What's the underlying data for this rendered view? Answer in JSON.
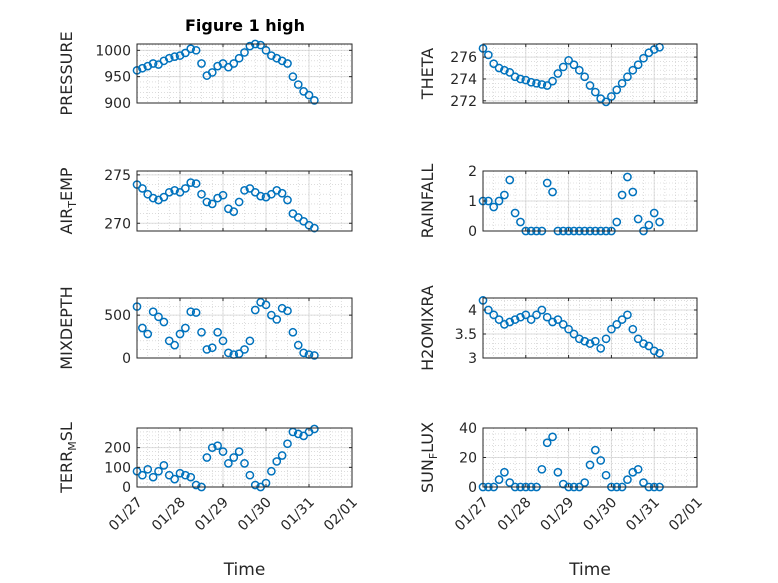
{
  "figure": {
    "title": "Figure 1 high",
    "marker_color": "#0072bd",
    "grid": "dotted"
  },
  "chart_data": [
    {
      "type": "scatter",
      "ylabel": "PRESSURE",
      "ylim": [
        900,
        1012
      ],
      "yticks": [
        900,
        950,
        1000
      ],
      "xlim": [
        "01/27",
        "02/01"
      ],
      "xticks": [
        "01/27",
        "01/28",
        "01/29",
        "01/30",
        "01/31",
        "02/01"
      ],
      "series": [
        {
          "x": [
            "01/27 00:00",
            "01/27 03:00",
            "01/27 06:00",
            "01/27 09:00",
            "01/27 12:00",
            "01/27 15:00",
            "01/27 18:00",
            "01/27 21:00",
            "01/28 00:00",
            "01/28 03:00",
            "01/28 06:00",
            "01/28 09:00",
            "01/28 12:00",
            "01/28 15:00",
            "01/28 18:00",
            "01/28 21:00",
            "01/29 00:00",
            "01/29 03:00",
            "01/29 06:00",
            "01/29 09:00",
            "01/29 12:00",
            "01/29 15:00",
            "01/29 18:00",
            "01/29 21:00",
            "01/30 00:00",
            "01/30 03:00",
            "01/30 06:00",
            "01/30 09:00",
            "01/30 12:00",
            "01/30 15:00",
            "01/30 18:00",
            "01/30 21:00",
            "01/31 00:00",
            "01/31 03:00"
          ],
          "y": [
            962,
            966,
            970,
            975,
            973,
            980,
            985,
            988,
            990,
            995,
            1003,
            1000,
            975,
            952,
            958,
            970,
            975,
            968,
            975,
            985,
            996,
            1008,
            1012,
            1010,
            1000,
            990,
            985,
            980,
            975,
            950,
            935,
            922,
            915,
            905
          ]
        }
      ]
    },
    {
      "type": "scatter",
      "ylabel": "THETA",
      "ylim": [
        271.8,
        277.2
      ],
      "yticks": [
        272,
        274,
        276
      ],
      "xlim": [
        "01/27",
        "02/01"
      ],
      "xticks": [
        "01/27",
        "01/28",
        "01/29",
        "01/30",
        "01/31",
        "02/01"
      ],
      "series": [
        {
          "x": [
            "01/27 00:00",
            "01/27 03:00",
            "01/27 06:00",
            "01/27 09:00",
            "01/27 12:00",
            "01/27 15:00",
            "01/27 18:00",
            "01/27 21:00",
            "01/28 00:00",
            "01/28 03:00",
            "01/28 06:00",
            "01/28 09:00",
            "01/28 12:00",
            "01/28 15:00",
            "01/28 18:00",
            "01/28 21:00",
            "01/29 00:00",
            "01/29 03:00",
            "01/29 06:00",
            "01/29 09:00",
            "01/29 12:00",
            "01/29 15:00",
            "01/29 18:00",
            "01/29 21:00",
            "01/30 00:00",
            "01/30 03:00",
            "01/30 06:00",
            "01/30 09:00",
            "01/30 12:00",
            "01/30 15:00",
            "01/30 18:00",
            "01/30 21:00",
            "01/31 00:00",
            "01/31 03:00"
          ],
          "y": [
            276.8,
            276.2,
            275.4,
            275.0,
            274.8,
            274.6,
            274.2,
            274.0,
            273.9,
            273.7,
            273.6,
            273.5,
            273.4,
            273.8,
            274.5,
            275.1,
            275.7,
            275.3,
            274.8,
            274.2,
            273.4,
            272.8,
            272.2,
            271.9,
            272.4,
            273.0,
            273.6,
            274.2,
            274.8,
            275.3,
            275.9,
            276.4,
            276.7,
            276.9
          ]
        }
      ]
    },
    {
      "type": "scatter",
      "ylabel": "AIR_TEMP",
      "ylim": [
        269.2,
        275.4
      ],
      "yticks": [
        270,
        275
      ],
      "xlim": [
        "01/27",
        "02/01"
      ],
      "xticks": [
        "01/27",
        "01/28",
        "01/29",
        "01/30",
        "01/31",
        "02/01"
      ],
      "series": [
        {
          "x": [
            "01/27 00:00",
            "01/27 03:00",
            "01/27 06:00",
            "01/27 09:00",
            "01/27 12:00",
            "01/27 15:00",
            "01/27 18:00",
            "01/27 21:00",
            "01/28 00:00",
            "01/28 03:00",
            "01/28 06:00",
            "01/28 09:00",
            "01/28 12:00",
            "01/28 15:00",
            "01/28 18:00",
            "01/28 21:00",
            "01/29 00:00",
            "01/29 03:00",
            "01/29 06:00",
            "01/29 09:00",
            "01/29 12:00",
            "01/29 15:00",
            "01/29 18:00",
            "01/29 21:00",
            "01/30 00:00",
            "01/30 03:00",
            "01/30 06:00",
            "01/30 09:00",
            "01/30 12:00",
            "01/30 15:00",
            "01/30 18:00",
            "01/30 21:00",
            "01/31 00:00",
            "01/31 03:00"
          ],
          "y": [
            274.0,
            273.6,
            273.0,
            272.6,
            272.4,
            272.7,
            273.2,
            273.4,
            273.2,
            273.6,
            274.2,
            274.1,
            273.0,
            272.2,
            272.0,
            272.6,
            272.9,
            271.5,
            271.2,
            272.2,
            273.4,
            273.6,
            273.2,
            272.8,
            272.7,
            273.0,
            273.4,
            273.1,
            272.4,
            271.0,
            270.6,
            270.2,
            269.8,
            269.5
          ]
        }
      ]
    },
    {
      "type": "scatter",
      "ylabel": "RAINFALL",
      "ylim": [
        0,
        2
      ],
      "yticks": [
        0,
        1,
        2
      ],
      "xlim": [
        "01/27",
        "02/01"
      ],
      "xticks": [
        "01/27",
        "01/28",
        "01/29",
        "01/30",
        "01/31",
        "02/01"
      ],
      "series": [
        {
          "x": [
            "01/27 00:00",
            "01/27 03:00",
            "01/27 06:00",
            "01/27 09:00",
            "01/27 12:00",
            "01/27 15:00",
            "01/27 18:00",
            "01/27 21:00",
            "01/28 00:00",
            "01/28 03:00",
            "01/28 06:00",
            "01/28 09:00",
            "01/28 12:00",
            "01/28 15:00",
            "01/28 18:00",
            "01/28 21:00",
            "01/29 00:00",
            "01/29 03:00",
            "01/29 06:00",
            "01/29 09:00",
            "01/29 12:00",
            "01/29 15:00",
            "01/29 18:00",
            "01/29 21:00",
            "01/30 00:00",
            "01/30 03:00",
            "01/30 06:00",
            "01/30 09:00",
            "01/30 12:00",
            "01/30 15:00",
            "01/30 18:00",
            "01/30 21:00",
            "01/31 00:00",
            "01/31 03:00"
          ],
          "y": [
            1.0,
            1.0,
            0.8,
            1.0,
            1.2,
            1.7,
            0.6,
            0.3,
            0.0,
            0.0,
            0.0,
            0.0,
            1.6,
            1.3,
            0.0,
            0.0,
            0.0,
            0.0,
            0.0,
            0.0,
            0.0,
            0.0,
            0.0,
            0.0,
            0.0,
            0.3,
            1.2,
            1.8,
            1.3,
            0.4,
            0.0,
            0.2,
            0.6,
            0.3
          ]
        }
      ]
    },
    {
      "type": "scatter",
      "ylabel": "MIXDEPTH",
      "ylim": [
        0,
        700
      ],
      "yticks": [
        0,
        500
      ],
      "xlim": [
        "01/27",
        "02/01"
      ],
      "xticks": [
        "01/27",
        "01/28",
        "01/29",
        "01/30",
        "01/31",
        "02/01"
      ],
      "series": [
        {
          "x": [
            "01/27 00:00",
            "01/27 03:00",
            "01/27 06:00",
            "01/27 09:00",
            "01/27 12:00",
            "01/27 15:00",
            "01/27 18:00",
            "01/27 21:00",
            "01/28 00:00",
            "01/28 03:00",
            "01/28 06:00",
            "01/28 09:00",
            "01/28 12:00",
            "01/28 15:00",
            "01/28 18:00",
            "01/28 21:00",
            "01/29 00:00",
            "01/29 03:00",
            "01/29 06:00",
            "01/29 09:00",
            "01/29 12:00",
            "01/29 15:00",
            "01/29 18:00",
            "01/29 21:00",
            "01/30 00:00",
            "01/30 03:00",
            "01/30 06:00",
            "01/30 09:00",
            "01/30 12:00",
            "01/30 15:00",
            "01/30 18:00",
            "01/30 21:00",
            "01/31 00:00",
            "01/31 03:00"
          ],
          "y": [
            600,
            350,
            280,
            540,
            480,
            420,
            200,
            150,
            280,
            350,
            540,
            530,
            300,
            100,
            120,
            300,
            200,
            60,
            40,
            50,
            100,
            200,
            560,
            650,
            620,
            500,
            450,
            580,
            550,
            300,
            150,
            60,
            40,
            30
          ]
        }
      ]
    },
    {
      "type": "scatter",
      "ylabel": "H2OMIXRA",
      "ylim": [
        3,
        4.25
      ],
      "yticks": [
        3,
        3.5,
        4
      ],
      "xlim": [
        "01/27",
        "02/01"
      ],
      "xticks": [
        "01/27",
        "01/28",
        "01/29",
        "01/30",
        "01/31",
        "02/01"
      ],
      "series": [
        {
          "x": [
            "01/27 00:00",
            "01/27 03:00",
            "01/27 06:00",
            "01/27 09:00",
            "01/27 12:00",
            "01/27 15:00",
            "01/27 18:00",
            "01/27 21:00",
            "01/28 00:00",
            "01/28 03:00",
            "01/28 06:00",
            "01/28 09:00",
            "01/28 12:00",
            "01/28 15:00",
            "01/28 18:00",
            "01/28 21:00",
            "01/29 00:00",
            "01/29 03:00",
            "01/29 06:00",
            "01/29 09:00",
            "01/29 12:00",
            "01/29 15:00",
            "01/29 18:00",
            "01/29 21:00",
            "01/30 00:00",
            "01/30 03:00",
            "01/30 06:00",
            "01/30 09:00",
            "01/30 12:00",
            "01/30 15:00",
            "01/30 18:00",
            "01/30 21:00",
            "01/31 00:00",
            "01/31 03:00"
          ],
          "y": [
            4.2,
            4.0,
            3.9,
            3.8,
            3.7,
            3.75,
            3.8,
            3.85,
            3.9,
            3.8,
            3.9,
            4.0,
            3.85,
            3.75,
            3.8,
            3.7,
            3.6,
            3.5,
            3.4,
            3.35,
            3.3,
            3.35,
            3.2,
            3.4,
            3.6,
            3.7,
            3.8,
            3.9,
            3.6,
            3.4,
            3.3,
            3.25,
            3.15,
            3.1
          ]
        }
      ]
    },
    {
      "type": "scatter",
      "ylabel": "TERR_MSL",
      "xlabel": "Time",
      "ylim": [
        0,
        300
      ],
      "yticks": [
        0,
        100,
        200
      ],
      "xlim": [
        "01/27",
        "02/01"
      ],
      "xticks": [
        "01/27",
        "01/28",
        "01/29",
        "01/30",
        "01/31",
        "02/01"
      ],
      "series": [
        {
          "x": [
            "01/27 00:00",
            "01/27 03:00",
            "01/27 06:00",
            "01/27 09:00",
            "01/27 12:00",
            "01/27 15:00",
            "01/27 18:00",
            "01/27 21:00",
            "01/28 00:00",
            "01/28 03:00",
            "01/28 06:00",
            "01/28 09:00",
            "01/28 12:00",
            "01/28 15:00",
            "01/28 18:00",
            "01/28 21:00",
            "01/29 00:00",
            "01/29 03:00",
            "01/29 06:00",
            "01/29 09:00",
            "01/29 12:00",
            "01/29 15:00",
            "01/29 18:00",
            "01/29 21:00",
            "01/30 00:00",
            "01/30 03:00",
            "01/30 06:00",
            "01/30 09:00",
            "01/30 12:00",
            "01/30 15:00",
            "01/30 18:00",
            "01/30 21:00",
            "01/31 00:00",
            "01/31 03:00"
          ],
          "y": [
            80,
            60,
            90,
            50,
            80,
            110,
            60,
            40,
            70,
            60,
            50,
            10,
            0,
            150,
            200,
            210,
            180,
            120,
            150,
            180,
            120,
            60,
            10,
            0,
            20,
            80,
            130,
            160,
            220,
            280,
            270,
            260,
            280,
            295
          ]
        }
      ]
    },
    {
      "type": "scatter",
      "ylabel": "SUN_FLUX",
      "xlabel": "Time",
      "ylim": [
        0,
        40
      ],
      "yticks": [
        0,
        20,
        40
      ],
      "xlim": [
        "01/27",
        "02/01"
      ],
      "xticks": [
        "01/27",
        "01/28",
        "01/29",
        "01/30",
        "01/31",
        "02/01"
      ],
      "series": [
        {
          "x": [
            "01/27 00:00",
            "01/27 03:00",
            "01/27 06:00",
            "01/27 09:00",
            "01/27 12:00",
            "01/27 15:00",
            "01/27 18:00",
            "01/27 21:00",
            "01/28 00:00",
            "01/28 03:00",
            "01/28 06:00",
            "01/28 09:00",
            "01/28 12:00",
            "01/28 15:00",
            "01/28 18:00",
            "01/28 21:00",
            "01/29 00:00",
            "01/29 03:00",
            "01/29 06:00",
            "01/29 09:00",
            "01/29 12:00",
            "01/29 15:00",
            "01/29 18:00",
            "01/29 21:00",
            "01/30 00:00",
            "01/30 03:00",
            "01/30 06:00",
            "01/30 09:00",
            "01/30 12:00",
            "01/30 15:00",
            "01/30 18:00",
            "01/30 21:00",
            "01/31 00:00",
            "01/31 03:00"
          ],
          "y": [
            0,
            0,
            0,
            5,
            10,
            3,
            0,
            0,
            0,
            0,
            0,
            12,
            30,
            34,
            10,
            2,
            0,
            0,
            0,
            3,
            15,
            25,
            18,
            8,
            0,
            0,
            0,
            5,
            10,
            12,
            3,
            0,
            0,
            0
          ]
        }
      ]
    }
  ]
}
